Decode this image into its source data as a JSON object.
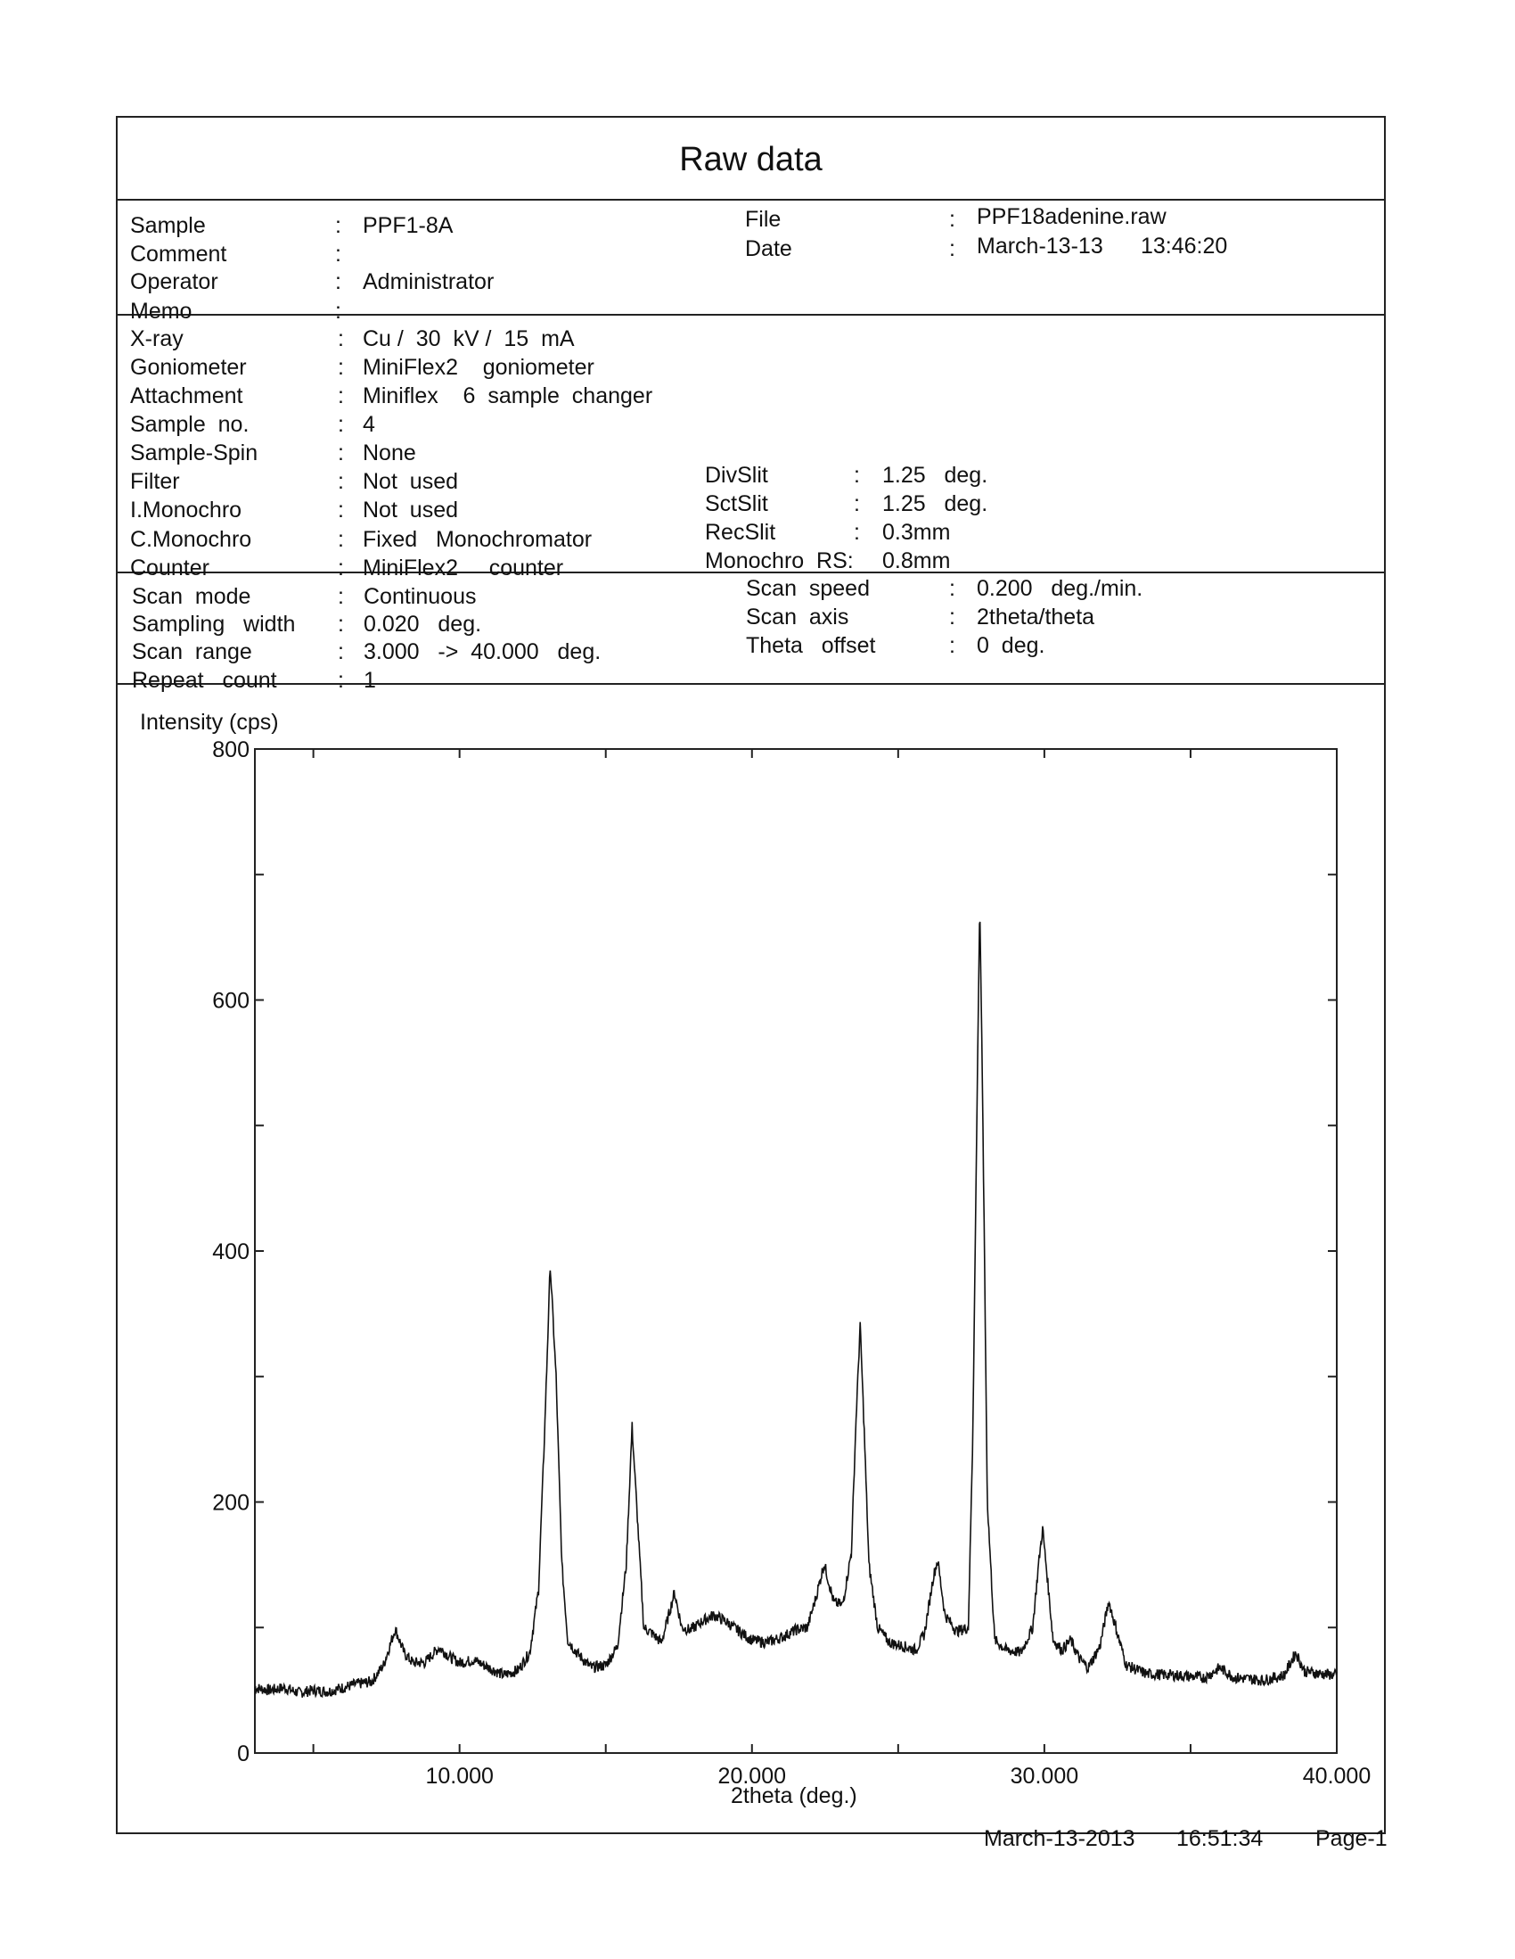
{
  "header": {
    "title": "Raw data"
  },
  "info": {
    "sample": {
      "label": "Sample",
      "value": "PPF1-8A"
    },
    "comment": {
      "label": "Comment",
      "value": ""
    },
    "operator": {
      "label": "Operator",
      "value": "Administrator"
    },
    "memo": {
      "label": "Memo",
      "value": ""
    },
    "file": {
      "label": "File",
      "value": "PPF18adenine.raw"
    },
    "date": {
      "label": "Date",
      "value": "March-13-13",
      "time": "13:46:20"
    }
  },
  "instrument": {
    "xray": {
      "label": "X-ray",
      "value": "Cu /  30  kV /  15  mA"
    },
    "goniometer": {
      "label": "Goniometer",
      "value": "MiniFlex2    goniometer"
    },
    "attachment": {
      "label": "Attachment",
      "value": "Miniflex    6  sample  changer"
    },
    "sample_no": {
      "label": "Sample  no.",
      "value": "4"
    },
    "sample_spin": {
      "label": "Sample-Spin",
      "value": "None"
    },
    "filter": {
      "label": "Filter",
      "value": "Not  used"
    },
    "i_monochro": {
      "label": "I.Monochro",
      "value": "Not  used"
    },
    "c_monochro": {
      "label": "C.Monochro",
      "value": "Fixed   Monochromator"
    },
    "counter": {
      "label": "Counter",
      "value": "MiniFlex2     counter"
    },
    "divslit": {
      "label": "DivSlit",
      "value": "1.25   deg."
    },
    "sctslit": {
      "label": "SctSlit",
      "value": "1.25   deg."
    },
    "recslit": {
      "label": "RecSlit",
      "value": "0.3mm"
    },
    "monochro_rs": {
      "label": "Monochro  RS:",
      "value": "0.8mm"
    }
  },
  "scan": {
    "mode": {
      "label": "Scan  mode",
      "value": "Continuous"
    },
    "sampling_width": {
      "label": "Sampling   width",
      "value": "0.020   deg."
    },
    "range": {
      "label": "Scan  range",
      "value": "3.000   ->  40.000   deg."
    },
    "repeat": {
      "label": "Repeat   count",
      "value": "1"
    },
    "speed": {
      "label": "Scan  speed",
      "value": "0.200   deg./min."
    },
    "axis": {
      "label": "Scan  axis",
      "value": "2theta/theta"
    },
    "theta_offset": {
      "label": "Theta   offset",
      "value": "0  deg."
    }
  },
  "footer": {
    "date": "March-13-2013",
    "time": "16:51:34",
    "page": "Page-1"
  },
  "chart_data": {
    "type": "line",
    "title": "",
    "xlabel": "2theta (deg.)",
    "ylabel": "Intensity (cps)",
    "xlim": [
      3,
      40
    ],
    "ylim": [
      0,
      800
    ],
    "x_tick_labels": [
      "10.000",
      "20.000",
      "30.000",
      "40.000"
    ],
    "x_tick_values": [
      10,
      20,
      30,
      40
    ],
    "y_tick_labels": [
      "0",
      "200",
      "400",
      "600",
      "800"
    ],
    "y_tick_values": [
      0,
      200,
      400,
      600,
      800
    ],
    "grid": false,
    "color": "#111111",
    "series": [
      {
        "x": [
          3.0,
          3.5,
          4.0,
          4.5,
          5.0,
          5.5,
          6.0,
          6.5,
          7.0,
          7.4,
          7.8,
          8.1,
          8.4,
          8.8,
          9.3,
          9.7,
          10.0,
          10.5,
          11.0,
          11.5,
          12.0,
          12.4,
          12.7,
          12.9,
          13.1,
          13.3,
          13.5,
          13.7,
          14.0,
          14.5,
          15.0,
          15.4,
          15.7,
          15.9,
          16.1,
          16.3,
          16.6,
          16.9,
          17.1,
          17.35,
          17.6,
          17.9,
          18.3,
          18.7,
          19.1,
          19.5,
          20.0,
          20.5,
          21.0,
          21.5,
          21.9,
          22.2,
          22.47,
          22.8,
          23.1,
          23.4,
          23.55,
          23.7,
          23.85,
          24.0,
          24.3,
          24.7,
          25.2,
          25.6,
          25.9,
          26.2,
          26.35,
          26.6,
          27.0,
          27.4,
          27.55,
          27.7,
          27.79,
          27.9,
          28.05,
          28.3,
          28.7,
          29.2,
          29.6,
          29.8,
          29.94,
          30.1,
          30.3,
          30.6,
          30.9,
          31.2,
          31.5,
          31.9,
          32.2,
          32.5,
          32.8,
          33.5,
          34.5,
          35.5,
          36.0,
          36.5,
          37.5,
          38.2,
          38.6,
          38.9,
          39.5,
          40.0
        ],
        "y": [
          52,
          50,
          52,
          48,
          50,
          49,
          52,
          55,
          57,
          70,
          99,
          80,
          72,
          72,
          84,
          76,
          72,
          74,
          68,
          62,
          66,
          80,
          130,
          250,
          389,
          300,
          150,
          90,
          80,
          68,
          70,
          85,
          150,
          260,
          180,
          100,
          95,
          88,
          105,
          128,
          100,
          98,
          105,
          110,
          105,
          98,
          90,
          88,
          92,
          98,
          100,
          125,
          151,
          120,
          118,
          160,
          260,
          341,
          250,
          150,
          100,
          88,
          85,
          82,
          95,
          140,
          154,
          110,
          97,
          100,
          250,
          520,
          679,
          500,
          200,
          90,
          82,
          80,
          100,
          150,
          179,
          140,
          90,
          82,
          90,
          75,
          68,
          85,
          121,
          95,
          70,
          63,
          62,
          60,
          68,
          60,
          58,
          62,
          80,
          65,
          63,
          62
        ]
      }
    ]
  }
}
